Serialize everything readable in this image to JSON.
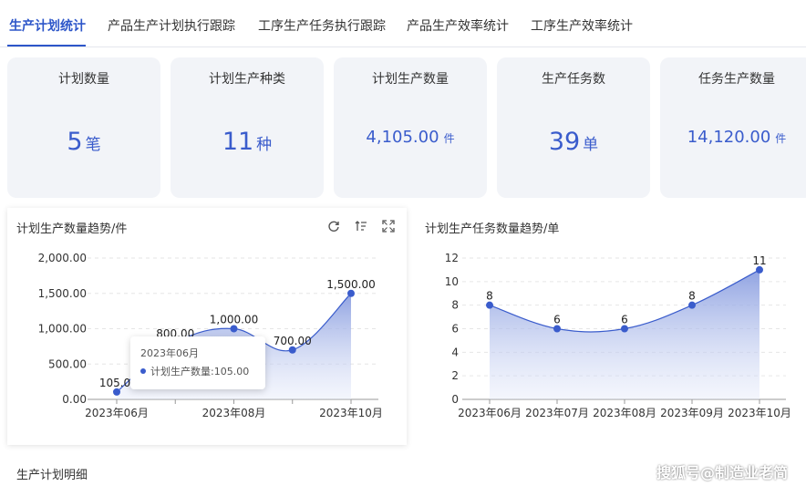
{
  "tabs": [
    "生产计划统计",
    "产品生产计划执行跟踪",
    "工序生产任务执行跟踪",
    "产品生产效率统计",
    "工序生产效率统计"
  ],
  "active_tab": 0,
  "cards": [
    {
      "title": "计划数量",
      "value": "5",
      "unit": "笔"
    },
    {
      "title": "计划生产种类",
      "value": "11",
      "unit": "种"
    },
    {
      "title": "计划生产数量",
      "value": "4,105.00",
      "unit": "件"
    },
    {
      "title": "生产任务数",
      "value": "39",
      "unit": "单"
    },
    {
      "title": "任务生产数量",
      "value": "14,120.00",
      "unit": "件"
    }
  ],
  "colors": {
    "accent": "#2d56c9",
    "series": "#3a5ccc",
    "card_bg": "#f2f4f8"
  },
  "left_chart": {
    "title": "计划生产数量趋势/件",
    "toolbar_icons": [
      "refresh-icon",
      "sort-icon",
      "fullscreen-icon"
    ],
    "tooltip": {
      "header": "2023年06月",
      "row": "计划生产数量:105.00"
    }
  },
  "right_chart": {
    "title": "计划生产任务数量趋势/单"
  },
  "section_title": "生产计划明细",
  "watermark": "搜狐号@制造业老简",
  "chart_data": [
    {
      "type": "area",
      "title": "计划生产数量趋势/件",
      "x": [
        "2023年06月",
        "2023年07月",
        "2023年08月",
        "2023年09月",
        "2023年10月"
      ],
      "x_tick_labels": [
        "2023年06月",
        "2023年08月",
        "2023年10月"
      ],
      "values": [
        105,
        800,
        1000,
        700,
        1500
      ],
      "data_labels": [
        "105.0",
        "800.00",
        "1,000.00",
        "700.00",
        "1,500.00"
      ],
      "y_ticks": [
        "0.00",
        "500.00",
        "1,000.00",
        "1,500.00",
        "2,000.00"
      ],
      "ylim": [
        0,
        2000
      ],
      "grid": true,
      "legend": "none"
    },
    {
      "type": "area",
      "title": "计划生产任务数量趋势/单",
      "x": [
        "2023年06月",
        "2023年07月",
        "2023年08月",
        "2023年09月",
        "2023年10月"
      ],
      "values": [
        8,
        6,
        6,
        8,
        11
      ],
      "data_labels": [
        "8",
        "6",
        "6",
        "8",
        "11"
      ],
      "y_ticks": [
        "0",
        "2",
        "4",
        "6",
        "8",
        "10",
        "12"
      ],
      "ylim": [
        0,
        12
      ],
      "grid": true,
      "legend": "none"
    }
  ]
}
